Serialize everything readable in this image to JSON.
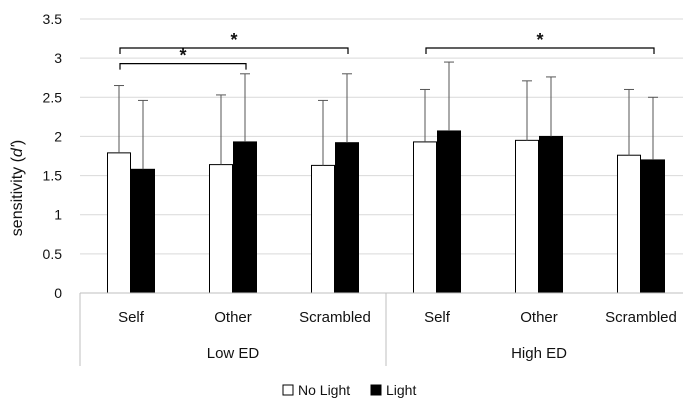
{
  "chart_data": {
    "type": "bar",
    "ylabel": "sensitivity (d')",
    "ylabel_prefix": "sensitivity (",
    "ylabel_italic": "d'",
    "ylabel_suffix": ")",
    "ylim": [
      0,
      3.5
    ],
    "yticks": [
      "0",
      "0.5",
      "1",
      "1.5",
      "2",
      "2.5",
      "3",
      "3.5"
    ],
    "grid": true,
    "legend_position": "bottom",
    "groups": [
      "Low ED",
      "High ED"
    ],
    "categories": [
      "Self",
      "Other",
      "Scrambled",
      "Self",
      "Other",
      "Scrambled"
    ],
    "series": [
      {
        "name": "No Light",
        "color": "#ffffff",
        "values": [
          1.79,
          1.64,
          1.63,
          1.93,
          1.95,
          1.76
        ],
        "error_upper": [
          2.65,
          2.53,
          2.46,
          2.6,
          2.71,
          2.6
        ]
      },
      {
        "name": "Light",
        "color": "#000000",
        "values": [
          1.58,
          1.93,
          1.92,
          2.07,
          2.0,
          1.7
        ],
        "error_upper": [
          2.46,
          2.8,
          2.8,
          2.95,
          2.76,
          2.5
        ]
      }
    ],
    "significance": [
      {
        "label": "*",
        "from_category": 0,
        "to_category": 1,
        "y": 2.93
      },
      {
        "label": "*",
        "from_category": 0,
        "to_category": 2,
        "y": 3.13
      },
      {
        "label": "*",
        "from_category": 3,
        "to_category": 5,
        "y": 3.13
      }
    ]
  }
}
